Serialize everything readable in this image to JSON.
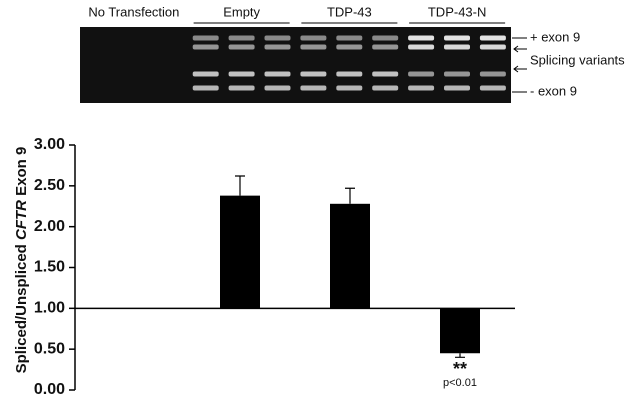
{
  "chart_data": {
    "type": "bar",
    "categories": [
      "No Transfection",
      "Empty",
      "TDP-43",
      "TDP-43-N"
    ],
    "values": [
      1.0,
      2.38,
      2.28,
      0.45
    ],
    "errors": [
      0,
      0.24,
      0.19,
      0.05
    ],
    "color": "#000000",
    "baseline": 1,
    "ylabel_parts": [
      "Spliced/Unspliced",
      "CFTR",
      "Exon 9"
    ],
    "ylim": [
      0,
      3
    ],
    "yticks": [
      {
        "value": 0,
        "label": "0.00"
      },
      {
        "value": 0.5,
        "label": "0.50"
      },
      {
        "value": 1,
        "label": "1.00"
      },
      {
        "value": 1.5,
        "label": "1.50"
      },
      {
        "value": 2,
        "label": "2.00"
      },
      {
        "value": 2.5,
        "label": "2.50"
      },
      {
        "value": 3,
        "label": "3.00"
      }
    ],
    "annotations": [
      "**",
      "p<0.01"
    ],
    "gel_labels": [
      "+ exon 9",
      "Splicing variants",
      "- exon 9"
    ]
  }
}
